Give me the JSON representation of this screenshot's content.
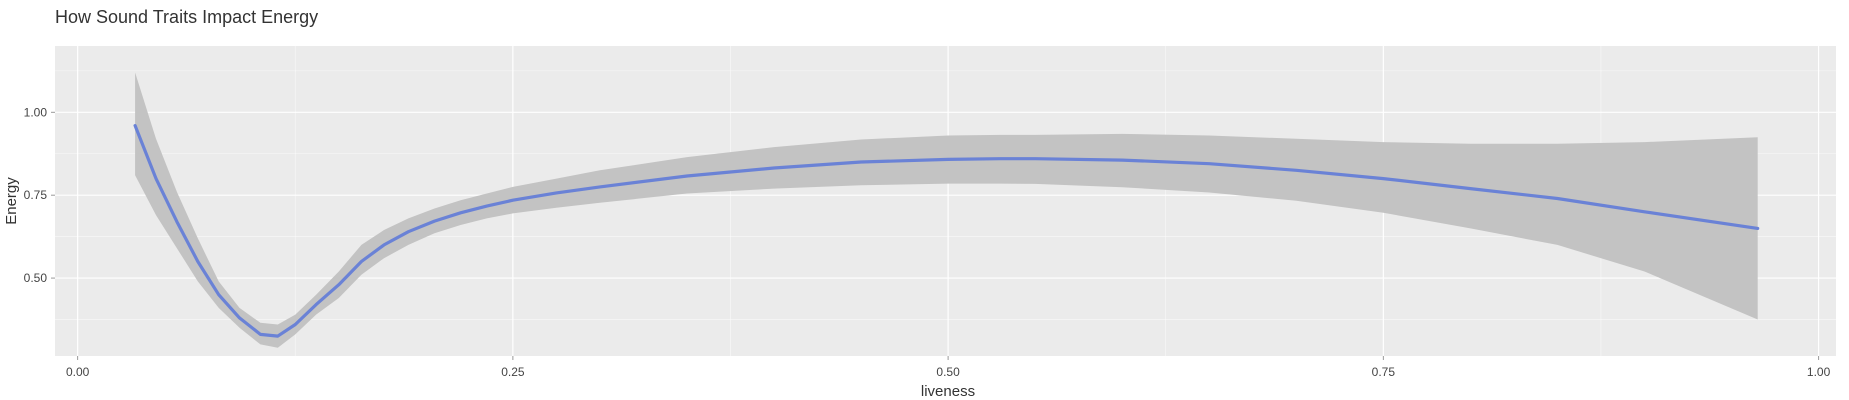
{
  "chart_data": {
    "type": "line",
    "title": "How Sound Traits Impact Energy",
    "xlabel": "liveness",
    "ylabel": "Energy",
    "xlim": [
      -0.013,
      1.01
    ],
    "ylim": [
      0.265,
      1.2
    ],
    "grid": true,
    "x_ticks": [
      {
        "value": 0.0,
        "label": "0.00"
      },
      {
        "value": 0.25,
        "label": "0.25"
      },
      {
        "value": 0.5,
        "label": "0.50"
      },
      {
        "value": 0.75,
        "label": "0.75"
      },
      {
        "value": 1.0,
        "label": "1.00"
      }
    ],
    "y_ticks": [
      {
        "value": 0.5,
        "label": "0.50"
      },
      {
        "value": 0.75,
        "label": "0.75"
      },
      {
        "value": 1.0,
        "label": "1.00"
      }
    ],
    "x": [
      0.033,
      0.045,
      0.057,
      0.069,
      0.081,
      0.093,
      0.105,
      0.115,
      0.125,
      0.137,
      0.15,
      0.163,
      0.176,
      0.19,
      0.205,
      0.22,
      0.235,
      0.25,
      0.275,
      0.3,
      0.35,
      0.4,
      0.45,
      0.5,
      0.53,
      0.55,
      0.6,
      0.65,
      0.7,
      0.75,
      0.8,
      0.85,
      0.9,
      0.965
    ],
    "series": [
      {
        "line_color": "#6a82d6",
        "band_color": "#c3c3c3",
        "y": [
          0.96,
          0.8,
          0.67,
          0.55,
          0.45,
          0.38,
          0.33,
          0.325,
          0.36,
          0.42,
          0.48,
          0.55,
          0.6,
          0.64,
          0.672,
          0.697,
          0.717,
          0.735,
          0.757,
          0.775,
          0.808,
          0.832,
          0.85,
          0.858,
          0.86,
          0.86,
          0.856,
          0.845,
          0.825,
          0.8,
          0.77,
          0.74,
          0.7,
          0.65
        ],
        "lower": [
          0.81,
          0.69,
          0.59,
          0.49,
          0.41,
          0.35,
          0.3,
          0.29,
          0.33,
          0.39,
          0.44,
          0.51,
          0.56,
          0.6,
          0.635,
          0.66,
          0.68,
          0.695,
          0.712,
          0.727,
          0.755,
          0.77,
          0.78,
          0.785,
          0.785,
          0.784,
          0.774,
          0.758,
          0.733,
          0.697,
          0.65,
          0.6,
          0.52,
          0.375
        ],
        "upper": [
          1.12,
          0.92,
          0.76,
          0.62,
          0.49,
          0.41,
          0.365,
          0.36,
          0.39,
          0.45,
          0.52,
          0.6,
          0.645,
          0.68,
          0.71,
          0.735,
          0.755,
          0.775,
          0.8,
          0.825,
          0.865,
          0.895,
          0.918,
          0.93,
          0.932,
          0.932,
          0.935,
          0.93,
          0.92,
          0.91,
          0.905,
          0.905,
          0.91,
          0.925
        ]
      }
    ]
  },
  "colors": {
    "panel_background": "#ebebeb",
    "grid": "#ffffff",
    "tick": "#999999"
  }
}
